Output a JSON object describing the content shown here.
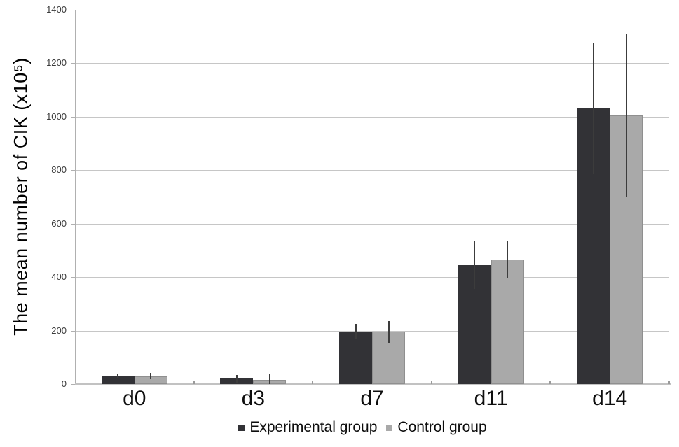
{
  "figure": {
    "background": "#ffffff"
  },
  "chart_data": {
    "type": "bar",
    "title": "",
    "xlabel": "",
    "ylabel": "The mean number of CIK (x10⁵)",
    "categories": [
      "d0",
      "d3",
      "d7",
      "d11",
      "d14"
    ],
    "series": [
      {
        "name": "Experimental group",
        "color": "#323236",
        "values": [
          30,
          20,
          197,
          445,
          1030
        ],
        "errors": [
          10,
          15,
          27,
          90,
          245
        ]
      },
      {
        "name": "Control group",
        "color": "#a9a9a9",
        "border_color": "#8f8f8f",
        "values": [
          30,
          15,
          195,
          467,
          1005
        ],
        "errors": [
          12,
          25,
          40,
          70,
          305
        ]
      }
    ],
    "ylim": [
      0,
      1400
    ],
    "ytick_step": 200,
    "yticks": [
      0,
      200,
      400,
      600,
      800,
      1000,
      1200,
      1400
    ],
    "grid": true,
    "error_bar_color": "#3c3c3c",
    "legend_position": "bottom-center"
  }
}
